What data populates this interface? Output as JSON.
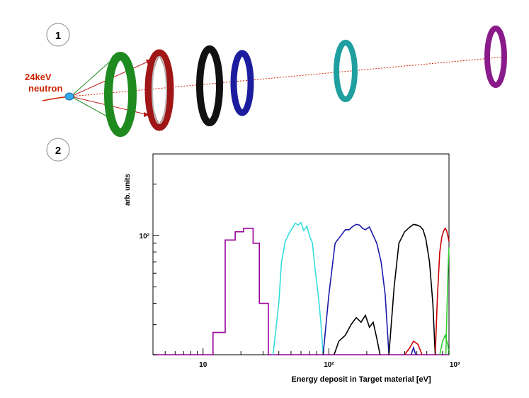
{
  "labels": {
    "panel_1": "1",
    "panel_2": "2",
    "neutron_energy": "24keV",
    "neutron_word": "neutron"
  },
  "colors": {
    "neutron": "#cc2200",
    "target": "#33aaee",
    "ring_green": "#1f8a1f",
    "ring_red": "#a01515",
    "ring_black": "#111111",
    "ring_blue": "#1c1c9e",
    "ring_cyan": "#1f9f9f",
    "ring_purple": "#8a1a8a"
  },
  "chart_data": {
    "type": "line",
    "xscale": "log",
    "yscale": "log",
    "xlim": [
      4,
      900
    ],
    "ylim": [
      20,
      300
    ],
    "xlabel": "Energy deposit in Target material [eV]",
    "ylabel": "arb. units",
    "xticks": [
      {
        "value": 10,
        "label": "10"
      },
      {
        "value": 100,
        "label": "10²"
      },
      {
        "value": 1000,
        "label": "10³"
      }
    ],
    "yticks": [
      {
        "value": 100,
        "label": "10²"
      }
    ],
    "grid": false,
    "series": [
      {
        "color": "#990099",
        "x": [
          4,
          12,
          12,
          15,
          15,
          18,
          18,
          21,
          21,
          25,
          25,
          28,
          28,
          33,
          33,
          900
        ],
        "y": [
          20,
          20,
          27,
          27,
          94,
          94,
          105,
          105,
          110,
          110,
          90,
          90,
          40,
          40,
          20,
          20
        ]
      },
      {
        "color": "#33dddd",
        "x": [
          36,
          40,
          42,
          45,
          48,
          51,
          54,
          57,
          60,
          63,
          67,
          70,
          74,
          78,
          82,
          86,
          90
        ],
        "y": [
          20,
          40,
          70,
          92,
          102,
          110,
          118,
          115,
          119,
          107,
          113,
          100,
          90,
          62,
          46,
          32,
          20
        ]
      },
      {
        "color": "#1a1aaa",
        "x": [
          90,
          100,
          112,
          125,
          135,
          145,
          155,
          165,
          175,
          185,
          195,
          210,
          225,
          240,
          260,
          280,
          300
        ],
        "y": [
          20,
          45,
          90,
          100,
          108,
          108,
          113,
          116,
          115,
          110,
          108,
          112,
          100,
          90,
          70,
          45,
          20
        ]
      },
      {
        "color": "#000000",
        "x": [
          110,
          120,
          135,
          150,
          165,
          180,
          195,
          210,
          225,
          240,
          255
        ],
        "y": [
          20,
          24,
          26,
          30,
          33,
          31,
          34,
          29,
          31,
          25,
          20
        ]
      },
      {
        "color": "#000000",
        "x": [
          300,
          330,
          360,
          400,
          440,
          470,
          500,
          530,
          560,
          590,
          630,
          670,
          700
        ],
        "y": [
          20,
          50,
          90,
          105,
          112,
          116,
          115,
          113,
          108,
          95,
          70,
          40,
          20
        ]
      },
      {
        "color": "#cc0000",
        "x": [
          700,
          730,
          760,
          790,
          820,
          840,
          860,
          880,
          900
        ],
        "y": [
          20,
          45,
          80,
          98,
          107,
          110,
          107,
          100,
          92
        ]
      },
      {
        "color": "#cc0000",
        "x": [
          400,
          440,
          470,
          510,
          550
        ],
        "y": [
          20,
          22,
          24,
          23,
          20
        ]
      },
      {
        "color": "#33cc33",
        "x": [
          760,
          800,
          840,
          880,
          900
        ],
        "y": [
          20,
          24,
          26,
          23,
          20
        ]
      },
      {
        "color": "#33cc33",
        "x": [
          850,
          870,
          890,
          900
        ],
        "y": [
          20,
          40,
          70,
          85
        ]
      },
      {
        "color": "#1a1aaa",
        "x": [
          450,
          470,
          490
        ],
        "y": [
          20,
          22,
          20
        ]
      }
    ]
  }
}
